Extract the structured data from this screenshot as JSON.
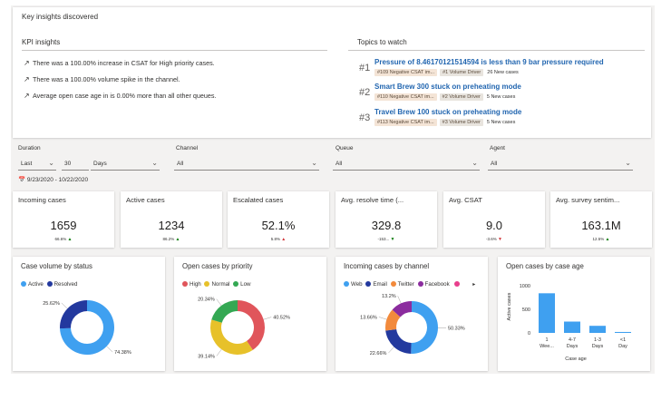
{
  "insights": {
    "header": "Key insights discovered",
    "kpi_title": "KPI insights",
    "kpis": [
      "There was a 100.00% increase in CSAT for High priority cases.",
      "There was a 100.00% volume spike in the channel.",
      "Average open case age in is 0.00% more than all other queues."
    ],
    "topics_title": "Topics to watch",
    "topics": [
      {
        "num": "#1",
        "title": "Pressure of 8.46170121514594 is less than 9 bar pressure required",
        "tag1": "#109 Negative CSAT im...",
        "tag2": "#1 Volume Driver",
        "cases": "26 New cases"
      },
      {
        "num": "#2",
        "title": "Smart Brew 300 stuck on preheating mode",
        "tag1": "#110 Negative CSAT im...",
        "tag2": "#2 Volume Driver",
        "cases": "5 New cases"
      },
      {
        "num": "#3",
        "title": "Travel Brew 100 stuck on preheating mode",
        "tag1": "#113 Negative CSAT im...",
        "tag2": "#3 Volume Driver",
        "cases": "5 New cases"
      }
    ]
  },
  "filters": {
    "duration_label": "Duration",
    "duration_type": "Last",
    "duration_value": "30",
    "duration_unit": "Days",
    "channel_label": "Channel",
    "channel_value": "All",
    "queue_label": "Queue",
    "queue_value": "All",
    "agent_label": "Agent",
    "agent_value": "All",
    "date_range": "9/23/2020 - 10/22/2020"
  },
  "stats": [
    {
      "title": "Incoming cases",
      "value": "1659",
      "change": "66.6%",
      "dir": "up"
    },
    {
      "title": "Active cases",
      "value": "1234",
      "change": "86.2%",
      "dir": "up"
    },
    {
      "title": "Escalated cases",
      "value": "52.1%",
      "change": "5.8%",
      "dir": "down"
    },
    {
      "title": "Avg. resolve time (...",
      "value": "329.8",
      "change": "-153...",
      "dir": "down-green"
    },
    {
      "title": "Avg. CSAT",
      "value": "9.0",
      "change": "-3.6%",
      "dir": "down"
    },
    {
      "title": "Avg. survey sentim...",
      "value": "163.1M",
      "change": "12.5%",
      "dir": "up"
    }
  ],
  "colors": {
    "up": "#107c10",
    "down": "#d13438",
    "accent": "#2266b0"
  },
  "chart_data": [
    {
      "type": "pie",
      "title": "Case volume by status",
      "categories": [
        "Active",
        "Resolved"
      ],
      "values": [
        74.38,
        25.62
      ],
      "labels": [
        "74.38%",
        "25.62%"
      ],
      "colors": [
        "#3fa0f0",
        "#23399e"
      ]
    },
    {
      "type": "pie",
      "title": "Open cases by priority",
      "categories": [
        "High",
        "Normal",
        "Low"
      ],
      "values": [
        40.52,
        39.14,
        20.34
      ],
      "labels": [
        "40.52%",
        "39.14%",
        "20.34%"
      ],
      "colors": [
        "#e0555b",
        "#e7c12a",
        "#34a853"
      ]
    },
    {
      "type": "pie",
      "title": "Incoming cases by channel",
      "categories": [
        "Web",
        "Email",
        "Twitter",
        "Facebook"
      ],
      "values": [
        50.33,
        22.66,
        13.66,
        13.2
      ],
      "labels": [
        "50.33%",
        "22.66%",
        "13.66%",
        "13.2%"
      ],
      "colors": [
        "#3fa0f0",
        "#23399e",
        "#f28a3c",
        "#8b2c9e"
      ],
      "legend_more": "▸"
    },
    {
      "type": "bar",
      "title": "Open cases by case age",
      "categories": [
        "1 Wee...",
        "4-7 Days",
        "1-3 Days",
        "<1 Day"
      ],
      "values": [
        840,
        240,
        150,
        20
      ],
      "ylim": [
        0,
        1000
      ],
      "yticks": [
        "0",
        "500",
        "1000"
      ],
      "ylabel": "Active cases",
      "xlabel": "Case age",
      "color": "#3fa0f0"
    }
  ]
}
